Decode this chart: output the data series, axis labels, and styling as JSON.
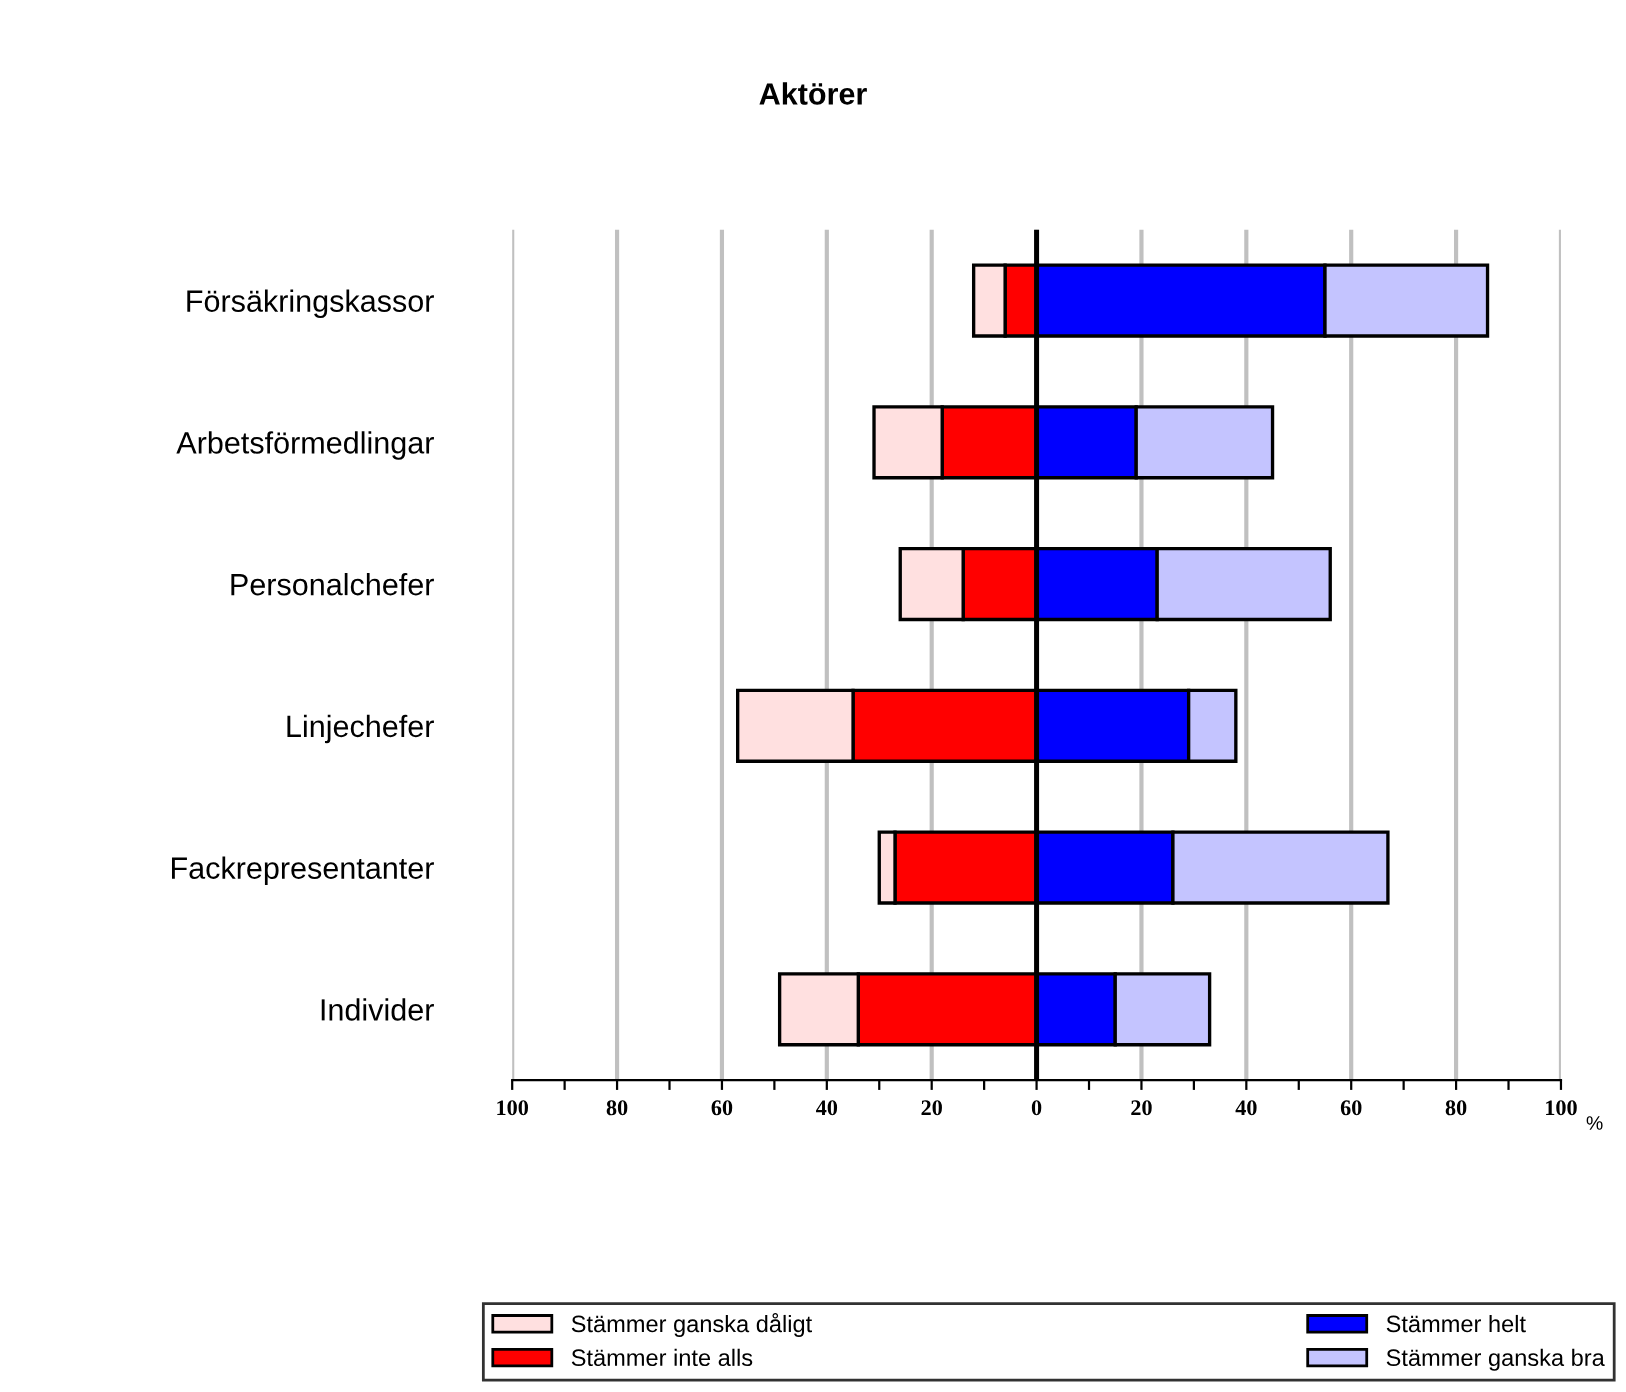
{
  "chart_data": {
    "type": "bar",
    "title": "Aktörer",
    "orientation": "horizontal",
    "stacked": true,
    "xlabel": "%",
    "categories": [
      "Försäkringskassor",
      "Arbetsförmedlingar",
      "Personalchefer",
      "Linjechefer",
      "Fackrepresentanter",
      "Individer"
    ],
    "series": [
      {
        "name": "Stämmer inte alls",
        "color": "#ff0000",
        "values": [
          -6,
          -18,
          -14,
          -35,
          -27,
          -34
        ]
      },
      {
        "name": "Stämmer ganska dåligt",
        "color": "#ffe0e0",
        "values": [
          -6,
          -13,
          -12,
          -22,
          -3,
          -15
        ]
      },
      {
        "name": "Stämmer helt",
        "color": "#0000ff",
        "values": [
          55,
          19,
          23,
          29,
          26,
          15
        ]
      },
      {
        "name": "Stämmer ganska bra",
        "color": "#c4c4ff",
        "values": [
          31,
          26,
          33,
          9,
          41,
          18
        ]
      }
    ],
    "xlim": [
      -100,
      100
    ],
    "xticks": [
      {
        "value": -100,
        "label": "100"
      },
      {
        "value": -90,
        "label": null
      },
      {
        "value": -80,
        "label": "80"
      },
      {
        "value": -70,
        "label": null
      },
      {
        "value": -60,
        "label": "60"
      },
      {
        "value": -50,
        "label": null
      },
      {
        "value": -40,
        "label": "40"
      },
      {
        "value": -30,
        "label": null
      },
      {
        "value": -20,
        "label": "20"
      },
      {
        "value": -10,
        "label": null
      },
      0,
      {
        "value": 10,
        "label": null
      },
      20,
      {
        "value": 30,
        "label": null
      },
      40,
      {
        "value": 50,
        "label": null
      },
      60,
      {
        "value": 70,
        "label": null
      },
      80,
      {
        "value": 90,
        "label": null
      },
      100
    ],
    "ref_lines": [
      {
        "axis": "x",
        "value": 0,
        "color": "#000000"
      }
    ],
    "grid": "x",
    "legend": "bottom"
  }
}
